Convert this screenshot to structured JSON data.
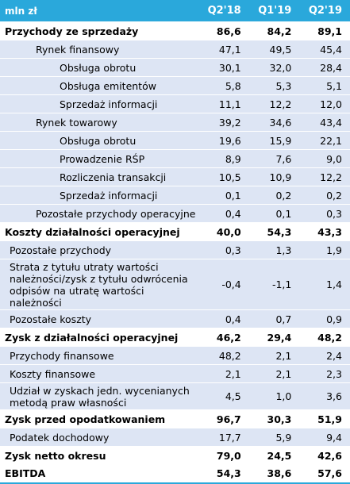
{
  "table": {
    "header": {
      "label": "mln zł",
      "cols": [
        "Q2'18",
        "Q1'19",
        "Q2'19"
      ]
    },
    "rows": [
      {
        "label": "Przychody ze sprzedaży",
        "values": [
          "86,6",
          "84,2",
          "89,1"
        ]
      },
      {
        "label": "Rynek finansowy",
        "values": [
          "47,1",
          "49,5",
          "45,4"
        ]
      },
      {
        "label": "Obsługa obrotu",
        "values": [
          "30,1",
          "32,0",
          "28,4"
        ]
      },
      {
        "label": "Obsługa emitentów",
        "values": [
          "5,8",
          "5,3",
          "5,1"
        ]
      },
      {
        "label": "Sprzedaż informacji",
        "values": [
          "11,1",
          "12,2",
          "12,0"
        ]
      },
      {
        "label": "Rynek towarowy",
        "values": [
          "39,2",
          "34,6",
          "43,4"
        ]
      },
      {
        "label": "Obsługa obrotu",
        "values": [
          "19,6",
          "15,9",
          "22,1"
        ]
      },
      {
        "label": "Prowadzenie RŚP",
        "values": [
          "8,9",
          "7,6",
          "9,0"
        ]
      },
      {
        "label": "Rozliczenia transakcji",
        "values": [
          "10,5",
          "10,9",
          "12,2"
        ]
      },
      {
        "label": "Sprzedaż informacji",
        "values": [
          "0,1",
          "0,2",
          "0,2"
        ]
      },
      {
        "label": "Pozostałe przychody operacyjne",
        "values": [
          "0,4",
          "0,1",
          "0,3"
        ]
      },
      {
        "label": "Koszty działalności operacyjnej",
        "values": [
          "40,0",
          "54,3",
          "43,3"
        ]
      },
      {
        "label": "Pozostałe przychody",
        "values": [
          "0,3",
          "1,3",
          "1,9"
        ]
      },
      {
        "label": "Strata z tytułu utraty wartości należności/zysk z tytułu odwrócenia odpisów na utratę wartości należności",
        "values": [
          "-0,4",
          "-1,1",
          "1,4"
        ]
      },
      {
        "label": "Pozostałe koszty",
        "values": [
          "0,4",
          "0,7",
          "0,9"
        ]
      },
      {
        "label": "Zysk z działalności operacyjnej",
        "values": [
          "46,2",
          "29,4",
          "48,2"
        ]
      },
      {
        "label": "Przychody finansowe",
        "values": [
          "48,2",
          "2,1",
          "2,4"
        ]
      },
      {
        "label": "Koszty finansowe",
        "values": [
          "2,1",
          "2,1",
          "2,3"
        ]
      },
      {
        "label": "Udział w zyskach jedn. wycenianych metodą praw własności",
        "values": [
          "4,5",
          "1,0",
          "3,6"
        ]
      },
      {
        "label": "Zysk przed opodatkowaniem",
        "values": [
          "96,7",
          "30,3",
          "51,9"
        ]
      },
      {
        "label": "Podatek dochodowy",
        "values": [
          "17,7",
          "5,9",
          "9,4"
        ]
      },
      {
        "label": "Zysk netto okresu",
        "values": [
          "79,0",
          "24,5",
          "42,6"
        ]
      },
      {
        "label": "EBITDA",
        "values": [
          "54,3",
          "38,6",
          "57,6"
        ]
      }
    ]
  }
}
